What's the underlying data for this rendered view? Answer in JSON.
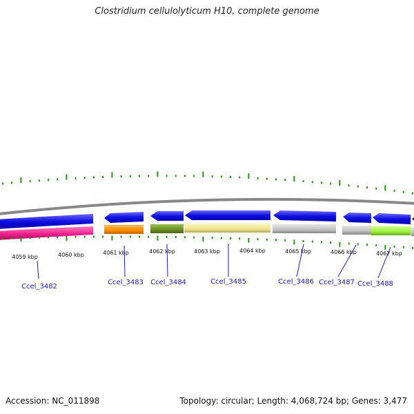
{
  "title": "Clostridium cellulolyticum H10, complete genome",
  "footer": {
    "accession": "Accession: NC_011898",
    "summary": "Topology: circular; Length: 4,068,724 bp; Genes: 3,477"
  },
  "axis_labels": [
    "4059 kbp",
    "4060 kbp",
    "4061 kbp",
    "4062 kbp",
    "4063 kbp",
    "4064 kbp",
    "4065 kbp",
    "4066 kbp",
    "4067 kbp"
  ],
  "gene_labels": [
    "Ccel_3482",
    "Ccel_3483",
    "Ccel_3484",
    "Ccel_3485",
    "Ccel_3486",
    "Ccel_3487",
    "Ccel_3488"
  ],
  "colors": {
    "cds": "#1010e0",
    "backbone": "#888888",
    "ticks": "#2a8a1a",
    "label_blue": "#1a1aaa",
    "feature_pink": "#ee1a8a",
    "feature_orange": "#ff8c00",
    "feature_olive": "#6b8e23",
    "feature_khaki": "#f0e68c",
    "feature_grey": "#c0c0c0",
    "feature_lime": "#9aee3a"
  }
}
